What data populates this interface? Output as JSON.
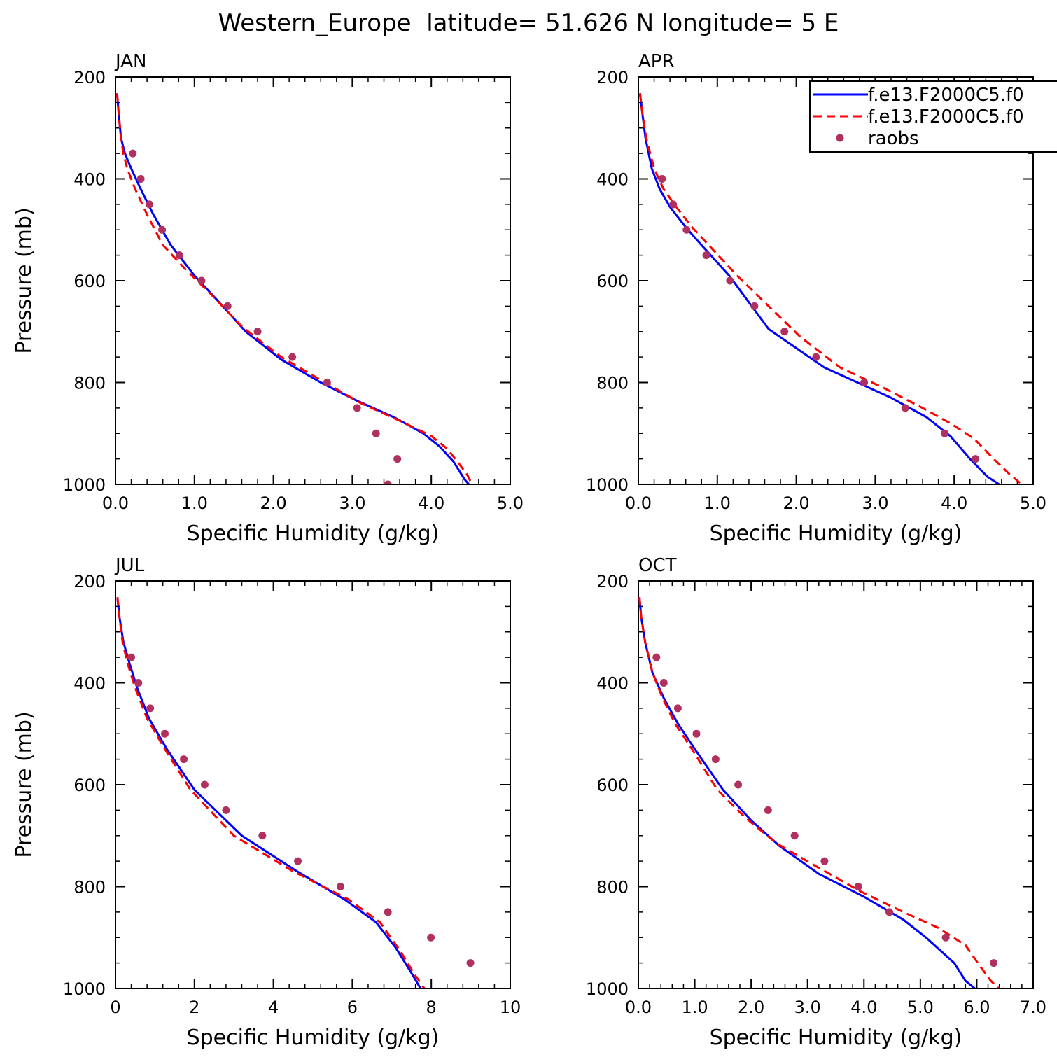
{
  "figure": {
    "title": "Western_Europe  latitude= 51.626 N longitude= 5 E"
  },
  "legend": {
    "entries": [
      {
        "label": "f.e13.F2000C5.f0",
        "color": "#0000ff",
        "dash": "solid"
      },
      {
        "label": "f.e13.F2000C5.f0",
        "color": "#ff0000",
        "dash": "dashed"
      },
      {
        "label": "raobs",
        "color": "#b03060",
        "dash": "marker"
      }
    ]
  },
  "colors": {
    "model1": "#0000ff",
    "model2": "#ff0000",
    "obs": "#b03060"
  },
  "chart_data": [
    {
      "type": "line",
      "panel_label": "JAN",
      "xlabel": "Specific Humidity (g/kg)",
      "ylabel": "Pressure (mb)",
      "xlim": [
        0,
        5
      ],
      "ylim": [
        200,
        1000
      ],
      "y_inverted": true,
      "xticks": [
        0,
        1,
        2,
        3,
        4,
        5
      ],
      "xticklabels": [
        "0.0",
        "1.0",
        "2.0",
        "3.0",
        "4.0",
        "5.0"
      ],
      "yticks": [
        200,
        400,
        600,
        800,
        1000
      ],
      "yticklabels": [
        "200",
        "400",
        "600",
        "800",
        "1000"
      ],
      "legend": false,
      "series": [
        {
          "name": "f.e13.F2000C5.f0",
          "style": "solid",
          "points": [
            [
              0.02,
              232
            ],
            [
              0.04,
              270
            ],
            [
              0.07,
              320
            ],
            [
              0.12,
              350
            ],
            [
              0.2,
              380
            ],
            [
              0.32,
              420
            ],
            [
              0.48,
              470
            ],
            [
              0.7,
              530
            ],
            [
              1.0,
              590
            ],
            [
              1.3,
              640
            ],
            [
              1.65,
              700
            ],
            [
              2.1,
              755
            ],
            [
              2.6,
              800
            ],
            [
              3.05,
              835
            ],
            [
              3.55,
              870
            ],
            [
              3.9,
              900
            ],
            [
              4.1,
              925
            ],
            [
              4.28,
              955
            ],
            [
              4.42,
              990
            ],
            [
              4.52,
              1008
            ]
          ]
        },
        {
          "name": "f.e13.F2000C5.f0",
          "style": "dashed",
          "points": [
            [
              0.02,
              232
            ],
            [
              0.04,
              270
            ],
            [
              0.07,
              320
            ],
            [
              0.1,
              350
            ],
            [
              0.15,
              380
            ],
            [
              0.25,
              420
            ],
            [
              0.4,
              470
            ],
            [
              0.6,
              530
            ],
            [
              0.9,
              580
            ],
            [
              1.2,
              625
            ],
            [
              1.6,
              690
            ],
            [
              2.1,
              750
            ],
            [
              2.6,
              795
            ],
            [
              3.1,
              840
            ],
            [
              3.6,
              875
            ],
            [
              4.0,
              905
            ],
            [
              4.2,
              930
            ],
            [
              4.33,
              955
            ],
            [
              4.45,
              980
            ],
            [
              4.5,
              995
            ]
          ]
        },
        {
          "name": "raobs",
          "style": "marker",
          "points": [
            [
              0.22,
              350
            ],
            [
              0.32,
              400
            ],
            [
              0.43,
              450
            ],
            [
              0.59,
              500
            ],
            [
              0.81,
              550
            ],
            [
              1.09,
              600
            ],
            [
              1.42,
              650
            ],
            [
              1.8,
              700
            ],
            [
              2.24,
              750
            ],
            [
              2.68,
              800
            ],
            [
              3.06,
              850
            ],
            [
              3.3,
              900
            ],
            [
              3.57,
              950
            ],
            [
              3.45,
              1000
            ]
          ]
        }
      ]
    },
    {
      "type": "line",
      "panel_label": "APR",
      "xlabel": "Specific Humidity (g/kg)",
      "ylabel": "",
      "xlim": [
        0,
        5
      ],
      "ylim": [
        200,
        1000
      ],
      "y_inverted": true,
      "xticks": [
        0,
        1,
        2,
        3,
        4,
        5
      ],
      "xticklabels": [
        "0.0",
        "1.0",
        "2.0",
        "3.0",
        "4.0",
        "5.0"
      ],
      "yticks": [
        200,
        400,
        600,
        800,
        1000
      ],
      "yticklabels": [
        "200",
        "400",
        "600",
        "800",
        "1000"
      ],
      "legend": true,
      "series": [
        {
          "name": "f.e13.F2000C5.f0",
          "style": "solid",
          "points": [
            [
              0.02,
              232
            ],
            [
              0.05,
              270
            ],
            [
              0.09,
              320
            ],
            [
              0.17,
              380
            ],
            [
              0.27,
              420
            ],
            [
              0.4,
              455
            ],
            [
              0.6,
              495
            ],
            [
              0.8,
              530
            ],
            [
              1.15,
              590
            ],
            [
              1.65,
              695
            ],
            [
              2.35,
              770
            ],
            [
              3.2,
              830
            ],
            [
              3.65,
              868
            ],
            [
              3.95,
              905
            ],
            [
              4.2,
              950
            ],
            [
              4.42,
              985
            ],
            [
              4.6,
              1003
            ]
          ]
        },
        {
          "name": "f.e13.F2000C5.f0",
          "style": "dashed",
          "points": [
            [
              0.02,
              232
            ],
            [
              0.05,
              270
            ],
            [
              0.1,
              320
            ],
            [
              0.2,
              380
            ],
            [
              0.32,
              420
            ],
            [
              0.48,
              455
            ],
            [
              0.68,
              495
            ],
            [
              0.92,
              535
            ],
            [
              1.25,
              590
            ],
            [
              1.65,
              650
            ],
            [
              2.05,
              710
            ],
            [
              2.55,
              770
            ],
            [
              3.1,
              810
            ],
            [
              3.6,
              850
            ],
            [
              3.95,
              880
            ],
            [
              4.25,
              910
            ],
            [
              4.5,
              950
            ],
            [
              4.7,
              980
            ],
            [
              4.88,
              1003
            ]
          ]
        },
        {
          "name": "raobs",
          "style": "marker",
          "points": [
            [
              0.3,
              400
            ],
            [
              0.44,
              450
            ],
            [
              0.61,
              500
            ],
            [
              0.86,
              550
            ],
            [
              1.16,
              600
            ],
            [
              1.47,
              650
            ],
            [
              1.85,
              700
            ],
            [
              2.25,
              750
            ],
            [
              2.86,
              800
            ],
            [
              3.38,
              850
            ],
            [
              3.88,
              900
            ],
            [
              4.27,
              950
            ]
          ]
        }
      ]
    },
    {
      "type": "line",
      "panel_label": "JUL",
      "xlabel": "Specific Humidity (g/kg)",
      "ylabel": "Pressure (mb)",
      "xlim": [
        0,
        10
      ],
      "ylim": [
        200,
        1000
      ],
      "y_inverted": true,
      "xticks": [
        0,
        2,
        4,
        6,
        8,
        10
      ],
      "xticklabels": [
        "0",
        "2",
        "4",
        "6",
        "8",
        "10"
      ],
      "yticks": [
        200,
        400,
        600,
        800,
        1000
      ],
      "yticklabels": [
        "200",
        "400",
        "600",
        "800",
        "1000"
      ],
      "legend": false,
      "series": [
        {
          "name": "f.e13.F2000C5.f0",
          "style": "solid",
          "points": [
            [
              0.05,
              232
            ],
            [
              0.1,
              270
            ],
            [
              0.2,
              320
            ],
            [
              0.35,
              360
            ],
            [
              0.55,
              410
            ],
            [
              0.85,
              470
            ],
            [
              1.3,
              530
            ],
            [
              2.0,
              610
            ],
            [
              3.2,
              700
            ],
            [
              4.6,
              770
            ],
            [
              5.8,
              825
            ],
            [
              6.6,
              870
            ],
            [
              7.1,
              920
            ],
            [
              7.5,
              970
            ],
            [
              7.75,
              1003
            ]
          ]
        },
        {
          "name": "f.e13.F2000C5.f0",
          "style": "dashed",
          "points": [
            [
              0.05,
              232
            ],
            [
              0.1,
              270
            ],
            [
              0.18,
              320
            ],
            [
              0.3,
              360
            ],
            [
              0.5,
              410
            ],
            [
              0.8,
              470
            ],
            [
              1.25,
              530
            ],
            [
              1.9,
              610
            ],
            [
              3.0,
              700
            ],
            [
              4.5,
              770
            ],
            [
              5.9,
              825
            ],
            [
              6.7,
              870
            ],
            [
              7.2,
              925
            ],
            [
              7.6,
              975
            ],
            [
              7.85,
              1003
            ]
          ]
        },
        {
          "name": "raobs",
          "style": "marker",
          "points": [
            [
              0.4,
              350
            ],
            [
              0.58,
              400
            ],
            [
              0.88,
              450
            ],
            [
              1.25,
              500
            ],
            [
              1.73,
              550
            ],
            [
              2.26,
              600
            ],
            [
              2.8,
              650
            ],
            [
              3.72,
              700
            ],
            [
              4.62,
              750
            ],
            [
              5.7,
              800
            ],
            [
              6.9,
              850
            ],
            [
              7.99,
              900
            ],
            [
              8.99,
              950
            ]
          ]
        }
      ]
    },
    {
      "type": "line",
      "panel_label": "OCT",
      "xlabel": "Specific Humidity (g/kg)",
      "ylabel": "",
      "xlim": [
        0,
        7
      ],
      "ylim": [
        200,
        1000
      ],
      "y_inverted": true,
      "xticks": [
        0,
        1,
        2,
        3,
        4,
        5,
        6,
        7
      ],
      "xticklabels": [
        "0.0",
        "1.0",
        "2.0",
        "3.0",
        "4.0",
        "5.0",
        "6.0",
        "7.0"
      ],
      "yticks": [
        200,
        400,
        600,
        800,
        1000
      ],
      "yticklabels": [
        "200",
        "400",
        "600",
        "800",
        "1000"
      ],
      "legend": false,
      "series": [
        {
          "name": "f.e13.F2000C5.f0",
          "style": "solid",
          "points": [
            [
              0.02,
              232
            ],
            [
              0.05,
              270
            ],
            [
              0.12,
              320
            ],
            [
              0.25,
              380
            ],
            [
              0.45,
              430
            ],
            [
              0.7,
              480
            ],
            [
              1.0,
              530
            ],
            [
              1.5,
              610
            ],
            [
              2.0,
              670
            ],
            [
              2.5,
              720
            ],
            [
              3.2,
              775
            ],
            [
              4.0,
              820
            ],
            [
              4.7,
              865
            ],
            [
              5.1,
              900
            ],
            [
              5.6,
              950
            ],
            [
              5.8,
              985
            ],
            [
              6.0,
              1003
            ]
          ]
        },
        {
          "name": "f.e13.F2000C5.f0",
          "style": "dashed",
          "points": [
            [
              0.02,
              232
            ],
            [
              0.05,
              270
            ],
            [
              0.12,
              320
            ],
            [
              0.25,
              380
            ],
            [
              0.43,
              430
            ],
            [
              0.65,
              480
            ],
            [
              0.95,
              530
            ],
            [
              1.4,
              610
            ],
            [
              1.9,
              665
            ],
            [
              2.45,
              715
            ],
            [
              3.15,
              760
            ],
            [
              3.95,
              810
            ],
            [
              4.7,
              850
            ],
            [
              5.3,
              880
            ],
            [
              5.8,
              915
            ],
            [
              6.05,
              955
            ],
            [
              6.25,
              985
            ],
            [
              6.42,
              1003
            ]
          ]
        },
        {
          "name": "raobs",
          "style": "marker",
          "points": [
            [
              0.32,
              350
            ],
            [
              0.45,
              400
            ],
            [
              0.7,
              450
            ],
            [
              1.03,
              500
            ],
            [
              1.37,
              550
            ],
            [
              1.77,
              600
            ],
            [
              2.3,
              650
            ],
            [
              2.77,
              700
            ],
            [
              3.3,
              750
            ],
            [
              3.9,
              800
            ],
            [
              4.45,
              850
            ],
            [
              5.45,
              900
            ],
            [
              6.3,
              950
            ]
          ]
        }
      ]
    }
  ]
}
